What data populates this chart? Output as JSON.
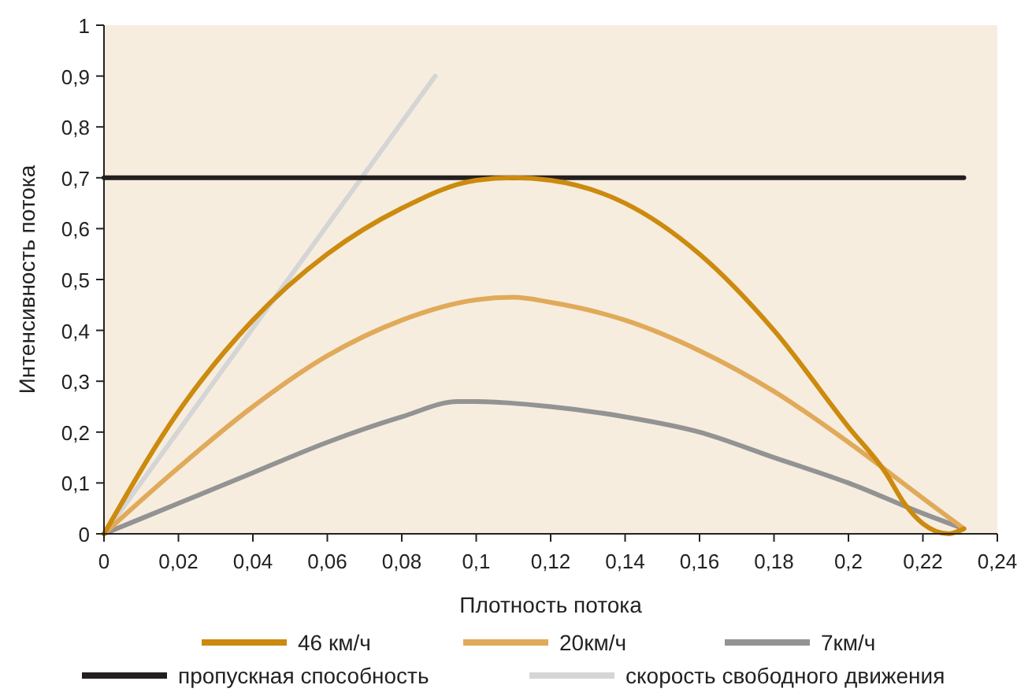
{
  "chart_data": {
    "type": "line",
    "xlabel": "Плотность потока",
    "ylabel": "Интенсивность потока",
    "xlim": [
      0,
      0.24
    ],
    "ylim": [
      0,
      1
    ],
    "xticks": [
      {
        "value": 0,
        "label": "0"
      },
      {
        "value": 0.02,
        "label": "0,02"
      },
      {
        "value": 0.04,
        "label": "0,04"
      },
      {
        "value": 0.06,
        "label": "0,06"
      },
      {
        "value": 0.08,
        "label": "0,08"
      },
      {
        "value": 0.1,
        "label": "0,1"
      },
      {
        "value": 0.12,
        "label": "0,12"
      },
      {
        "value": 0.14,
        "label": "0,14"
      },
      {
        "value": 0.16,
        "label": "0,16"
      },
      {
        "value": 0.18,
        "label": "0,18"
      },
      {
        "value": 0.2,
        "label": "0,2"
      },
      {
        "value": 0.22,
        "label": "0,22"
      },
      {
        "value": 0.24,
        "label": "0,24"
      }
    ],
    "yticks": [
      {
        "value": 0,
        "label": "0"
      },
      {
        "value": 0.1,
        "label": "0,1"
      },
      {
        "value": 0.2,
        "label": "0,2"
      },
      {
        "value": 0.3,
        "label": "0,3"
      },
      {
        "value": 0.4,
        "label": "0,4"
      },
      {
        "value": 0.5,
        "label": "0,5"
      },
      {
        "value": 0.6,
        "label": "0,6"
      },
      {
        "value": 0.7,
        "label": "0,7"
      },
      {
        "value": 0.8,
        "label": "0,8"
      },
      {
        "value": 0.9,
        "label": "0,9"
      },
      {
        "value": 1,
        "label": "1"
      }
    ],
    "grid": false,
    "legend": "bottom",
    "marker": "none",
    "line_style": "solid",
    "series": [
      {
        "name": "46 км/ч",
        "color": "#cc8a0e",
        "x": [
          0,
          0.02,
          0.04,
          0.06,
          0.08,
          0.1,
          0.11,
          0.12,
          0.14,
          0.16,
          0.18,
          0.2,
          0.21,
          0.215,
          0.22,
          0.227,
          0.231
        ],
        "values": [
          0,
          0.24,
          0.42,
          0.55,
          0.64,
          0.695,
          0.7,
          0.695,
          0.65,
          0.55,
          0.4,
          0.21,
          0.12,
          0.06,
          0.02,
          0.0,
          0.01
        ]
      },
      {
        "name": "20км/ч",
        "color": "#e0aa5a",
        "x": [
          0,
          0.02,
          0.04,
          0.06,
          0.08,
          0.1,
          0.11,
          0.12,
          0.14,
          0.16,
          0.18,
          0.2,
          0.22,
          0.231
        ],
        "values": [
          0,
          0.13,
          0.25,
          0.35,
          0.42,
          0.46,
          0.465,
          0.455,
          0.42,
          0.36,
          0.28,
          0.18,
          0.07,
          0.01
        ]
      },
      {
        "name": "7км/ч",
        "color": "#939393",
        "x": [
          0,
          0.02,
          0.04,
          0.06,
          0.08,
          0.095,
          0.1,
          0.12,
          0.14,
          0.16,
          0.18,
          0.2,
          0.22,
          0.231
        ],
        "values": [
          0,
          0.06,
          0.12,
          0.18,
          0.23,
          0.26,
          0.26,
          0.25,
          0.23,
          0.2,
          0.15,
          0.1,
          0.04,
          0.01
        ]
      },
      {
        "name": "пропускная способность",
        "color": "#231f20",
        "x": [
          0,
          0.231
        ],
        "values": [
          0.7,
          0.7
        ]
      },
      {
        "name": "скорость свободного движения",
        "color": "#d5d5d5",
        "x": [
          0,
          0.089
        ],
        "values": [
          0,
          0.9
        ]
      }
    ]
  }
}
